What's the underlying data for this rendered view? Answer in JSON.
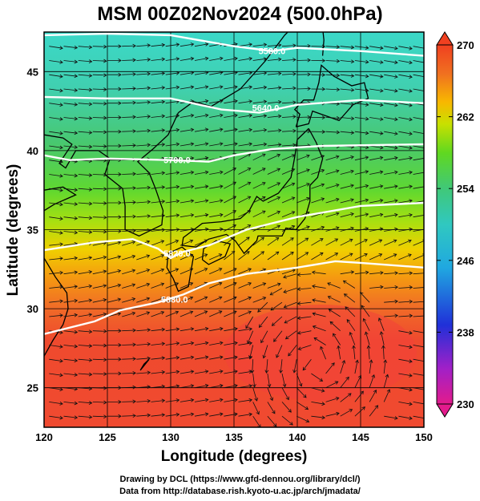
{
  "title": "MSM 00Z02Nov2024 (500.0hPa)",
  "map": {
    "xlabel": "Longitude (degrees)",
    "ylabel": "Latitude  (degrees)",
    "lon_range": [
      120,
      150
    ],
    "lat_range": [
      22.5,
      47.5
    ],
    "lon_ticks": [
      "120",
      "125",
      "130",
      "135",
      "140",
      "145",
      "150"
    ],
    "lat_ticks": [
      "25",
      "30",
      "35",
      "40",
      "45"
    ]
  },
  "contours": [
    {
      "label": "5580.0",
      "points": [
        [
          120,
          47.3
        ],
        [
          125,
          47.4
        ],
        [
          130,
          47.3
        ],
        [
          135,
          46.6
        ],
        [
          138,
          46.3
        ],
        [
          140,
          46.5
        ],
        [
          145,
          46.3
        ],
        [
          150,
          46.0
        ]
      ],
      "label_at": [
        138,
        46.3
      ]
    },
    {
      "label": "5640.0",
      "points": [
        [
          120,
          43.4
        ],
        [
          125,
          43.3
        ],
        [
          130,
          43.3
        ],
        [
          134,
          42.6
        ],
        [
          137,
          42.4
        ],
        [
          140,
          42.9
        ],
        [
          145,
          43.2
        ],
        [
          150,
          43.0
        ]
      ],
      "label_at": [
        137.5,
        42.7
      ]
    },
    {
      "label": "5700.0",
      "points": [
        [
          120,
          39.7
        ],
        [
          122,
          39.4
        ],
        [
          125,
          39.5
        ],
        [
          130,
          39.4
        ],
        [
          133,
          39.3
        ],
        [
          135,
          39.7
        ],
        [
          138,
          40.1
        ],
        [
          142,
          40.3
        ],
        [
          150,
          40.4
        ]
      ],
      "label_at": [
        130.5,
        39.4
      ]
    },
    {
      "label": "5820.0",
      "points": [
        [
          120,
          33.7
        ],
        [
          124,
          34.2
        ],
        [
          127,
          34.4
        ],
        [
          129,
          33.8
        ],
        [
          130,
          33.2
        ],
        [
          131,
          33.6
        ],
        [
          133,
          34.0
        ],
        [
          136,
          35.0
        ],
        [
          140,
          35.8
        ],
        [
          145,
          36.5
        ],
        [
          150,
          36.7
        ]
      ],
      "label_at": [
        130.5,
        33.5
      ]
    },
    {
      "label": "5880.0",
      "points": [
        [
          120,
          28.4
        ],
        [
          124,
          29.2
        ],
        [
          126,
          29.9
        ],
        [
          129,
          30.4
        ],
        [
          131,
          30.9
        ],
        [
          133,
          31.6
        ],
        [
          136,
          32.2
        ],
        [
          140,
          32.6
        ],
        [
          143,
          33.0
        ],
        [
          145,
          32.9
        ],
        [
          150,
          32.6
        ]
      ],
      "label_at": [
        130.3,
        30.6
      ]
    }
  ],
  "cyclone_center": [
    141.5,
    26.5
  ],
  "colorbar": {
    "ticks": [
      "270",
      "262",
      "254",
      "246",
      "238",
      "230"
    ],
    "range": [
      230,
      270
    ],
    "colors": [
      "#e31b8c",
      "#a020c8",
      "#2030d8",
      "#20a8e0",
      "#30c8c0",
      "#40c878",
      "#50d820",
      "#a8e010",
      "#f0e000",
      "#f8a800",
      "#f07020",
      "#f04020"
    ]
  },
  "credits": [
    "Drawing by DCL (https://www.gfd-dennou.org/library/dcl/)",
    "Data from http://database.rish.kyoto-u.ac.jp/arch/jmadata/"
  ]
}
